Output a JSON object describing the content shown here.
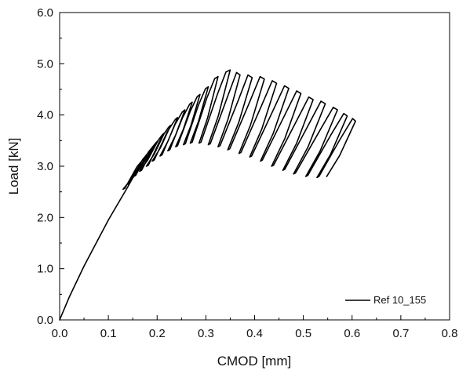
{
  "chart_data": {
    "type": "line",
    "title": "",
    "xlabel": "CMOD [mm]",
    "ylabel": "Load [kN]",
    "xlim": [
      0.0,
      0.8
    ],
    "ylim": [
      0.0,
      6.0
    ],
    "x_ticks": [
      "0.0",
      "0.1",
      "0.2",
      "0.3",
      "0.4",
      "0.5",
      "0.6",
      "0.7",
      "0.8"
    ],
    "y_ticks": [
      "0.0",
      "1.0",
      "2.0",
      "3.0",
      "4.0",
      "5.0",
      "6.0"
    ],
    "grid": false,
    "legend_position": "bottom-right",
    "series": [
      {
        "name": "Ref 10_155",
        "color": "#000000",
        "envelope": [
          {
            "x": 0.0,
            "y": 0.0
          },
          {
            "x": 0.02,
            "y": 0.45
          },
          {
            "x": 0.05,
            "y": 1.05
          },
          {
            "x": 0.1,
            "y": 1.95
          },
          {
            "x": 0.14,
            "y": 2.6
          },
          {
            "x": 0.18,
            "y": 3.15
          },
          {
            "x": 0.22,
            "y": 3.65
          },
          {
            "x": 0.26,
            "y": 4.15
          },
          {
            "x": 0.3,
            "y": 4.6
          },
          {
            "x": 0.33,
            "y": 4.82
          },
          {
            "x": 0.355,
            "y": 4.92
          }
        ],
        "cycles": [
          {
            "peak": [
              0.166,
              3.05
            ],
            "unload": [
              0.13,
              2.55
            ]
          },
          {
            "peak": [
              0.178,
              3.2
            ],
            "unload": [
              0.14,
              2.65
            ]
          },
          {
            "peak": [
              0.19,
              3.35
            ],
            "unload": [
              0.152,
              2.8
            ]
          },
          {
            "peak": [
              0.202,
              3.5
            ],
            "unload": [
              0.164,
              2.9
            ]
          },
          {
            "peak": [
              0.215,
              3.65
            ],
            "unload": [
              0.178,
              3.0
            ]
          },
          {
            "peak": [
              0.228,
              3.8
            ],
            "unload": [
              0.19,
              3.1
            ]
          },
          {
            "peak": [
              0.242,
              3.95
            ],
            "unload": [
              0.206,
              3.2
            ]
          },
          {
            "peak": [
              0.257,
              4.1
            ],
            "unload": [
              0.222,
              3.3
            ]
          },
          {
            "peak": [
              0.272,
              4.25
            ],
            "unload": [
              0.238,
              3.38
            ]
          },
          {
            "peak": [
              0.288,
              4.4
            ],
            "unload": [
              0.254,
              3.42
            ]
          },
          {
            "peak": [
              0.305,
              4.55
            ],
            "unload": [
              0.268,
              3.45
            ]
          },
          {
            "peak": [
              0.325,
              4.75
            ],
            "unload": [
              0.286,
              3.45
            ]
          },
          {
            "peak": [
              0.35,
              4.88
            ],
            "unload": [
              0.305,
              3.42
            ]
          },
          {
            "peak": [
              0.37,
              4.78
            ],
            "unload": [
              0.325,
              3.38
            ]
          },
          {
            "peak": [
              0.395,
              4.73
            ],
            "unload": [
              0.345,
              3.32
            ]
          },
          {
            "peak": [
              0.42,
              4.7
            ],
            "unload": [
              0.368,
              3.25
            ]
          },
          {
            "peak": [
              0.445,
              4.62
            ],
            "unload": [
              0.39,
              3.18
            ]
          },
          {
            "peak": [
              0.47,
              4.52
            ],
            "unload": [
              0.412,
              3.1
            ]
          },
          {
            "peak": [
              0.495,
              4.42
            ],
            "unload": [
              0.435,
              3.0
            ]
          },
          {
            "peak": [
              0.52,
              4.3
            ],
            "unload": [
              0.458,
              2.92
            ]
          },
          {
            "peak": [
              0.545,
              4.22
            ],
            "unload": [
              0.48,
              2.85
            ]
          },
          {
            "peak": [
              0.57,
              4.1
            ],
            "unload": [
              0.505,
              2.8
            ]
          },
          {
            "peak": [
              0.59,
              3.98
            ],
            "unload": [
              0.528,
              2.78
            ]
          },
          {
            "peak": [
              0.607,
              3.88
            ],
            "unload": [
              0.548,
              2.8
            ]
          }
        ]
      }
    ]
  }
}
